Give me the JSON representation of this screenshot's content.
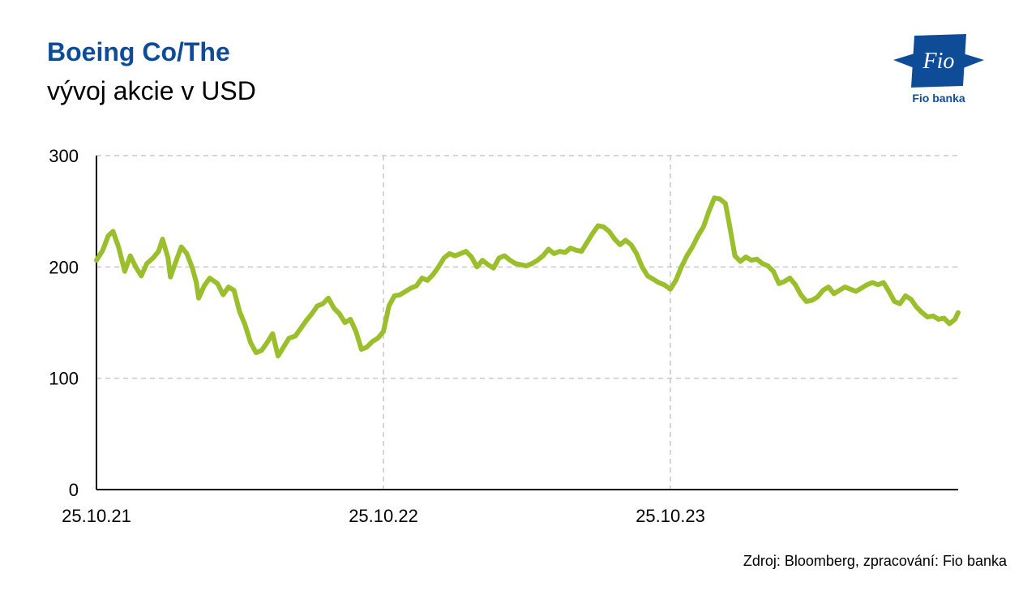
{
  "header": {
    "title": "Boeing Co/The",
    "subtitle": "vývoj akcie v USD"
  },
  "logo": {
    "text": "Fio",
    "caption": "Fio banka",
    "color": "#0f4c97"
  },
  "footer": {
    "source": "Zdroj: Bloomberg, zpracování: Fio banka"
  },
  "chart_data": {
    "type": "line",
    "title": "Boeing Co/The",
    "subtitle": "vývoj akcie v USD",
    "xlabel": "",
    "ylabel": "",
    "ylim": [
      0,
      300
    ],
    "xlim": [
      "2021-10-25",
      "2024-10-25"
    ],
    "yticks": [
      0,
      100,
      200,
      300
    ],
    "xticks": [
      {
        "date": "2021-10-25",
        "label": "25.10.21"
      },
      {
        "date": "2022-10-25",
        "label": "25.10.22"
      },
      {
        "date": "2023-10-25",
        "label": "25.10.23"
      }
    ],
    "grid": true,
    "legend": "none",
    "line_color": "#9bbf2c",
    "series": [
      {
        "points": [
          [
            "2021-10-25",
            206
          ],
          [
            "2021-11-02",
            215
          ],
          [
            "2021-11-09",
            228
          ],
          [
            "2021-11-15",
            232
          ],
          [
            "2021-11-22",
            218
          ],
          [
            "2021-11-30",
            196
          ],
          [
            "2021-12-07",
            210
          ],
          [
            "2021-12-14",
            200
          ],
          [
            "2021-12-21",
            192
          ],
          [
            "2021-12-28",
            203
          ],
          [
            "2022-01-05",
            208
          ],
          [
            "2022-01-12",
            214
          ],
          [
            "2022-01-17",
            225
          ],
          [
            "2022-01-24",
            208
          ],
          [
            "2022-01-27",
            191
          ],
          [
            "2022-02-03",
            205
          ],
          [
            "2022-02-10",
            218
          ],
          [
            "2022-02-17",
            212
          ],
          [
            "2022-02-24",
            199
          ],
          [
            "2022-03-01",
            186
          ],
          [
            "2022-03-04",
            172
          ],
          [
            "2022-03-11",
            183
          ],
          [
            "2022-03-18",
            190
          ],
          [
            "2022-03-28",
            185
          ],
          [
            "2022-04-04",
            175
          ],
          [
            "2022-04-11",
            182
          ],
          [
            "2022-04-18",
            179
          ],
          [
            "2022-04-25",
            160
          ],
          [
            "2022-05-02",
            148
          ],
          [
            "2022-05-09",
            132
          ],
          [
            "2022-05-16",
            123
          ],
          [
            "2022-05-23",
            125
          ],
          [
            "2022-05-30",
            132
          ],
          [
            "2022-06-06",
            140
          ],
          [
            "2022-06-13",
            120
          ],
          [
            "2022-06-20",
            128
          ],
          [
            "2022-06-27",
            136
          ],
          [
            "2022-07-05",
            138
          ],
          [
            "2022-07-12",
            145
          ],
          [
            "2022-07-19",
            152
          ],
          [
            "2022-07-26",
            158
          ],
          [
            "2022-08-02",
            165
          ],
          [
            "2022-08-09",
            167
          ],
          [
            "2022-08-16",
            172
          ],
          [
            "2022-08-23",
            163
          ],
          [
            "2022-08-30",
            158
          ],
          [
            "2022-09-06",
            150
          ],
          [
            "2022-09-13",
            153
          ],
          [
            "2022-09-20",
            142
          ],
          [
            "2022-09-27",
            126
          ],
          [
            "2022-10-04",
            128
          ],
          [
            "2022-10-11",
            133
          ],
          [
            "2022-10-18",
            136
          ],
          [
            "2022-10-25",
            142
          ],
          [
            "2022-11-01",
            165
          ],
          [
            "2022-11-08",
            174
          ],
          [
            "2022-11-15",
            175
          ],
          [
            "2022-11-22",
            178
          ],
          [
            "2022-11-29",
            181
          ],
          [
            "2022-12-06",
            183
          ],
          [
            "2022-12-13",
            190
          ],
          [
            "2022-12-20",
            188
          ],
          [
            "2022-12-27",
            193
          ],
          [
            "2023-01-03",
            200
          ],
          [
            "2023-01-10",
            208
          ],
          [
            "2023-01-17",
            212
          ],
          [
            "2023-01-24",
            210
          ],
          [
            "2023-01-31",
            212
          ],
          [
            "2023-02-07",
            214
          ],
          [
            "2023-02-14",
            209
          ],
          [
            "2023-02-21",
            200
          ],
          [
            "2023-02-28",
            206
          ],
          [
            "2023-03-07",
            202
          ],
          [
            "2023-03-14",
            199
          ],
          [
            "2023-03-21",
            208
          ],
          [
            "2023-03-28",
            210
          ],
          [
            "2023-04-04",
            206
          ],
          [
            "2023-04-11",
            203
          ],
          [
            "2023-04-18",
            202
          ],
          [
            "2023-04-25",
            201
          ],
          [
            "2023-05-02",
            203
          ],
          [
            "2023-05-09",
            206
          ],
          [
            "2023-05-16",
            210
          ],
          [
            "2023-05-23",
            216
          ],
          [
            "2023-05-30",
            212
          ],
          [
            "2023-06-06",
            214
          ],
          [
            "2023-06-13",
            213
          ],
          [
            "2023-06-20",
            217
          ],
          [
            "2023-06-27",
            215
          ],
          [
            "2023-07-04",
            214
          ],
          [
            "2023-07-11",
            222
          ],
          [
            "2023-07-18",
            230
          ],
          [
            "2023-07-25",
            237
          ],
          [
            "2023-08-01",
            236
          ],
          [
            "2023-08-08",
            232
          ],
          [
            "2023-08-15",
            225
          ],
          [
            "2023-08-22",
            220
          ],
          [
            "2023-08-29",
            224
          ],
          [
            "2023-09-05",
            220
          ],
          [
            "2023-09-12",
            212
          ],
          [
            "2023-09-19",
            200
          ],
          [
            "2023-09-26",
            192
          ],
          [
            "2023-10-03",
            189
          ],
          [
            "2023-10-10",
            186
          ],
          [
            "2023-10-17",
            184
          ],
          [
            "2023-10-25",
            180
          ],
          [
            "2023-11-01",
            188
          ],
          [
            "2023-11-08",
            200
          ],
          [
            "2023-11-15",
            210
          ],
          [
            "2023-11-22",
            218
          ],
          [
            "2023-11-29",
            228
          ],
          [
            "2023-12-06",
            236
          ],
          [
            "2023-12-13",
            250
          ],
          [
            "2023-12-20",
            262
          ],
          [
            "2023-12-27",
            261
          ],
          [
            "2024-01-03",
            257
          ],
          [
            "2024-01-08",
            238
          ],
          [
            "2024-01-15",
            210
          ],
          [
            "2024-01-22",
            205
          ],
          [
            "2024-01-29",
            209
          ],
          [
            "2024-02-05",
            206
          ],
          [
            "2024-02-12",
            207
          ],
          [
            "2024-02-19",
            203
          ],
          [
            "2024-02-26",
            201
          ],
          [
            "2024-03-04",
            196
          ],
          [
            "2024-03-11",
            185
          ],
          [
            "2024-03-18",
            187
          ],
          [
            "2024-03-25",
            190
          ],
          [
            "2024-04-01",
            184
          ],
          [
            "2024-04-08",
            175
          ],
          [
            "2024-04-15",
            169
          ],
          [
            "2024-04-22",
            170
          ],
          [
            "2024-04-29",
            173
          ],
          [
            "2024-05-06",
            179
          ],
          [
            "2024-05-13",
            182
          ],
          [
            "2024-05-20",
            176
          ],
          [
            "2024-05-27",
            179
          ],
          [
            "2024-06-03",
            182
          ],
          [
            "2024-06-10",
            180
          ],
          [
            "2024-06-17",
            178
          ],
          [
            "2024-06-24",
            181
          ],
          [
            "2024-07-01",
            184
          ],
          [
            "2024-07-08",
            186
          ],
          [
            "2024-07-15",
            184
          ],
          [
            "2024-07-22",
            186
          ],
          [
            "2024-07-29",
            178
          ],
          [
            "2024-08-05",
            169
          ],
          [
            "2024-08-12",
            167
          ],
          [
            "2024-08-19",
            174
          ],
          [
            "2024-08-26",
            171
          ],
          [
            "2024-09-02",
            164
          ],
          [
            "2024-09-09",
            159
          ],
          [
            "2024-09-16",
            155
          ],
          [
            "2024-09-23",
            156
          ],
          [
            "2024-09-30",
            153
          ],
          [
            "2024-10-07",
            154
          ],
          [
            "2024-10-14",
            149
          ],
          [
            "2024-10-21",
            153
          ],
          [
            "2024-10-25",
            159
          ]
        ]
      }
    ]
  }
}
